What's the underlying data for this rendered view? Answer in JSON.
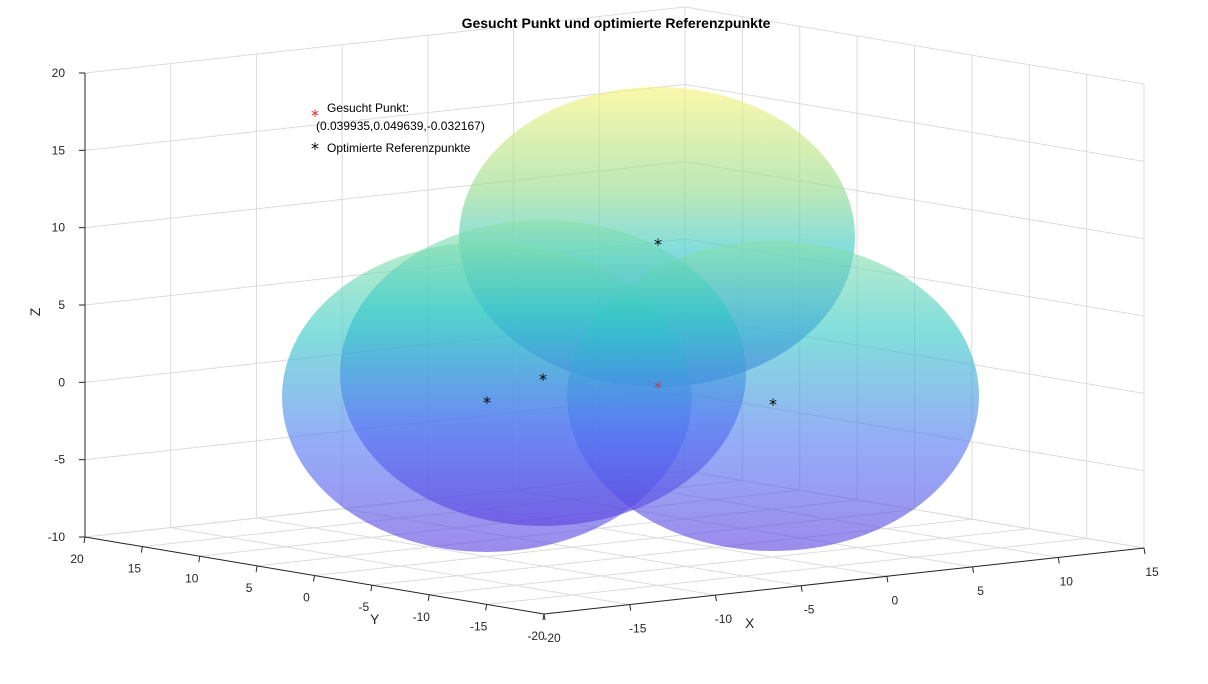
{
  "chart_data": {
    "type": "scatter3d",
    "title": "Gesucht Punkt und optimierte Referenzpunkte",
    "xlabel": "X",
    "ylabel": "Y",
    "zlabel": "Z",
    "xlim": [
      -20,
      15
    ],
    "ylim": [
      -20,
      20
    ],
    "zlim": [
      -10,
      20
    ],
    "x_ticks": [
      "-20",
      "-15",
      "-10",
      "-5",
      "0",
      "5",
      "10",
      "15"
    ],
    "y_ticks": [
      "20",
      "15",
      "10",
      "5",
      "0",
      "-5",
      "-10",
      "-15",
      "-20"
    ],
    "z_ticks": [
      "20",
      "15",
      "10",
      "5",
      "0",
      "-5",
      "-10"
    ],
    "grid": true,
    "legend_position": "top-left",
    "legend": [
      {
        "label_line1": "Gesucht Punkt:",
        "label_line2": "(0.039935,0.049639,-0.032167)",
        "marker": "*",
        "color": "#d62728"
      },
      {
        "label_line1": "Optimierte Referenzpunkte",
        "marker": "*",
        "color": "#000000"
      }
    ],
    "series": [
      {
        "name": "Gesucht Punkt",
        "color": "#d62728",
        "points": [
          {
            "x": 0.039935,
            "y": 0.049639,
            "z": -0.032167
          }
        ]
      },
      {
        "name": "Optimierte Referenzpunkte",
        "color": "#000000",
        "points": [
          {
            "x": -5,
            "y": 5,
            "z": 12
          },
          {
            "x": -10,
            "y": 5,
            "z": -2
          },
          {
            "x": 5,
            "y": -5,
            "z": -2
          },
          {
            "x": -10,
            "y": -5,
            "z": 2
          }
        ]
      }
    ],
    "spheres": [
      {
        "center_ref": 0,
        "radius": 12
      },
      {
        "center_ref": 1,
        "radius": 12
      },
      {
        "center_ref": 2,
        "radius": 12
      },
      {
        "center_ref": 3,
        "radius": 12
      }
    ]
  }
}
